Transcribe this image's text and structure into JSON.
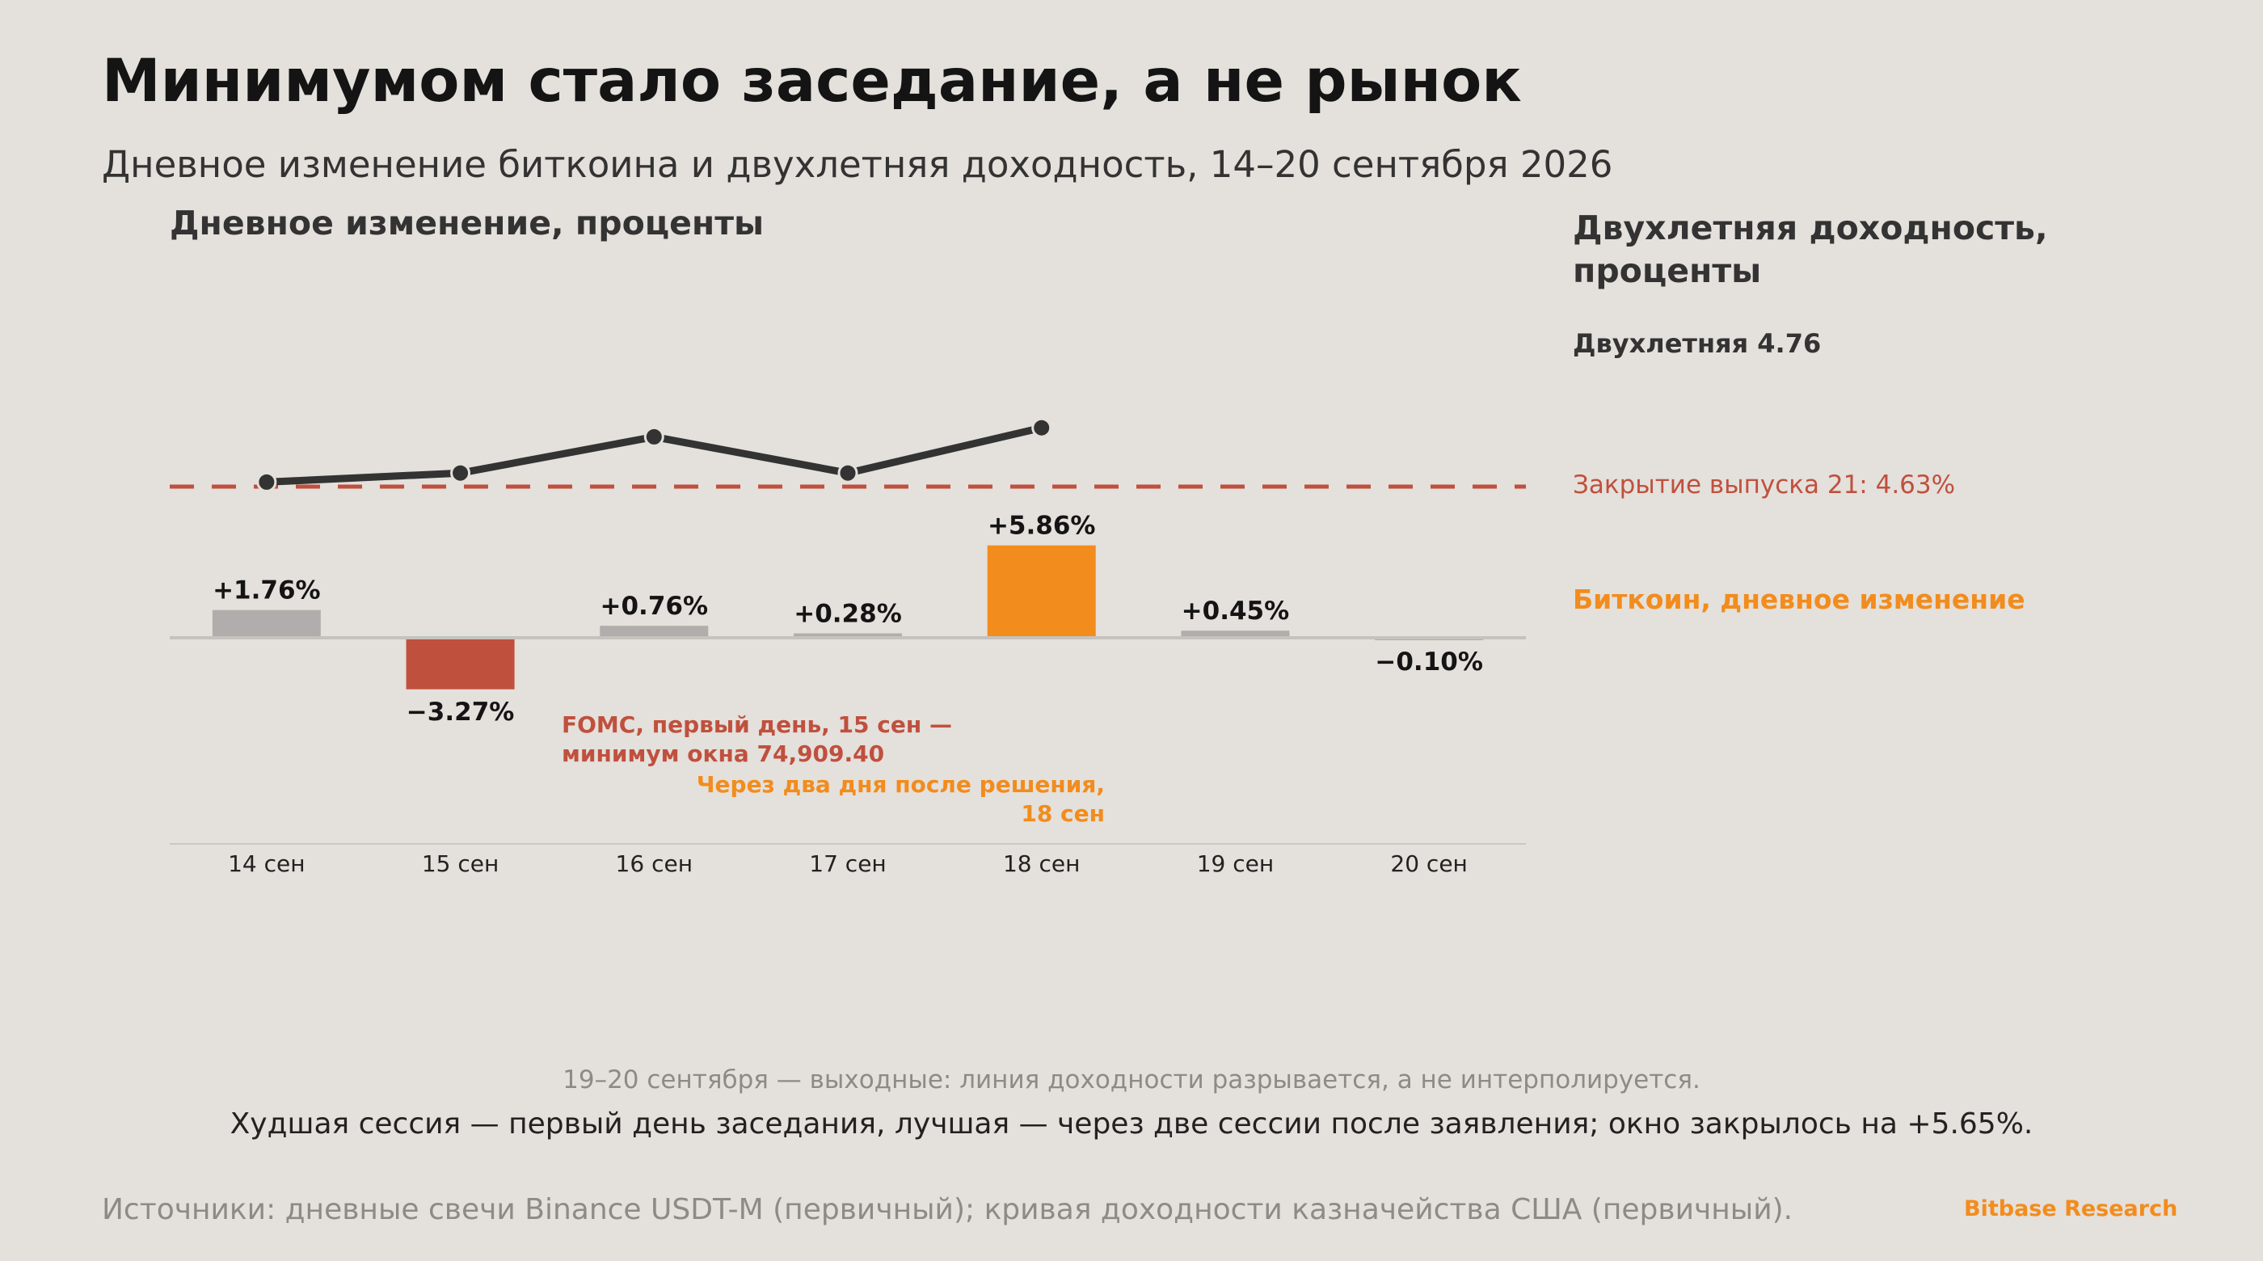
{
  "title": "Минимумом стало заседание, а не рынок",
  "subtitle": "Дневное изменение биткоина и двухлетняя доходность, 14–20 сентября 2026",
  "left_axis_title": "Дневное изменение, проценты",
  "right_axis_title": "Двухлетняя доходность, проценты",
  "yield_label": "Двухлетняя 4.76",
  "reference_label": "Закрытие выпуска 21: 4.63%",
  "btc_label": "Биткоин, дневное изменение",
  "weekend_note": "19–20 сентября — выходные: линия доходности разрывается, а не интерполируется.",
  "summary": "Худшая сессия — первый день заседания, лучшая — через две сессии после заявления; окно закрылось на +5.65%.",
  "sources": "Источники: дневные свечи Binance USDT-M (первичный); кривая доходности казначейства США (первичный).",
  "brand": "Bitbase Research",
  "colors": {
    "background": "#e4e0db",
    "neutral_bar": "#b0aeac",
    "negative_bar": "#c0503e",
    "highlight_bar": "#f28c1d",
    "yield_line": "#333333",
    "reference_line": "#c0503e"
  },
  "chart_data": {
    "type": "bar+line",
    "categories": [
      "14 сен",
      "15 сен",
      "16 сен",
      "17 сен",
      "18 сен",
      "19 сен",
      "20 сен"
    ],
    "bar_series": {
      "name": "Биткоин, дневное изменение",
      "values": [
        1.76,
        -3.27,
        0.76,
        0.28,
        5.86,
        0.45,
        -0.1
      ],
      "labels": [
        "+1.76%",
        "−3.27%",
        "+0.76%",
        "+0.28%",
        "+5.86%",
        "+0.45%",
        "−0.10%"
      ],
      "bar_colors": [
        "#b0aeac",
        "#c0503e",
        "#b0aeac",
        "#b0aeac",
        "#f28c1d",
        "#b0aeac",
        "#b0aeac"
      ]
    },
    "line_series": {
      "name": "Двухлетняя",
      "values": [
        4.64,
        4.66,
        4.74,
        4.66,
        4.76,
        null,
        null
      ]
    },
    "reference_line": {
      "value": 4.63
    },
    "annotations": [
      {
        "text_lines": [
          "FOMC, первый день, 15 сен —",
          "минимум окна 74,909.40"
        ],
        "color": "#c0503e"
      },
      {
        "text_lines": [
          "Через два дня после решения,",
          "18 сен"
        ],
        "color": "#f28c1d"
      }
    ]
  }
}
